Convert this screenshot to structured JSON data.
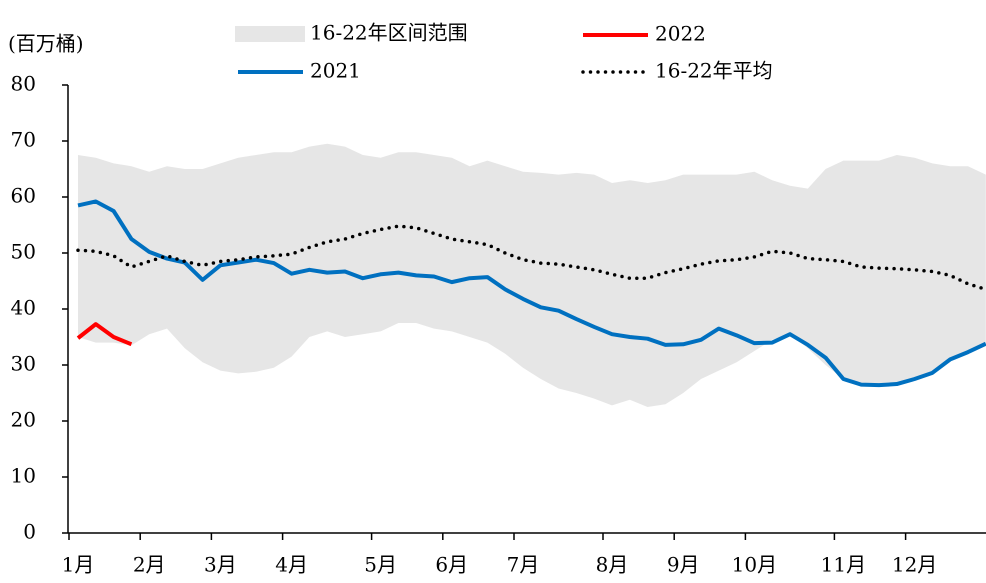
{
  "chart_data": {
    "type": "line",
    "y_label": "(百万桶)",
    "categories": [
      "1月",
      null,
      null,
      null,
      "2月",
      null,
      null,
      null,
      "3月",
      null,
      null,
      null,
      "4月",
      null,
      null,
      null,
      null,
      "5月",
      null,
      null,
      null,
      "6月",
      null,
      null,
      null,
      "7月",
      null,
      null,
      null,
      null,
      "8月",
      null,
      null,
      null,
      "9月",
      null,
      null,
      null,
      "10月",
      null,
      null,
      null,
      null,
      "11月",
      null,
      null,
      null,
      "12月",
      null,
      null,
      null,
      null
    ],
    "ylim": [
      0,
      80
    ],
    "yticks": [
      0,
      10,
      20,
      30,
      40,
      50,
      60,
      70,
      80
    ],
    "series": [
      {
        "name": "16-22年区间范围",
        "color": "#e6e6e6",
        "style": "range",
        "values": [
          67.5,
          67,
          66,
          65.5,
          64.5,
          65.5,
          65,
          65,
          66,
          67,
          67.5,
          68,
          68,
          69,
          69.5,
          69,
          67.5,
          67,
          68,
          68,
          67.5,
          67,
          65.5,
          66.5,
          65.5,
          64.5,
          64.3,
          64,
          64.3,
          64,
          62.5,
          63,
          62.5,
          63,
          64,
          64,
          64,
          64,
          64.5,
          63,
          62,
          61.5,
          65,
          66.5,
          66.5,
          66.5,
          67.5,
          67,
          66,
          65.5,
          65.5,
          64
        ],
        "lower": [
          35,
          34,
          34,
          33.5,
          35.5,
          36.5,
          33,
          30.5,
          29,
          28.5,
          28.8,
          29.5,
          31.5,
          35,
          36,
          35,
          35.5,
          36,
          37.5,
          37.5,
          36.5,
          36,
          35,
          34,
          32,
          29.5,
          27.5,
          25.8,
          25,
          24,
          22.8,
          23.8,
          22.5,
          23,
          25,
          27.5,
          29,
          30.5,
          32.5,
          34.5,
          35.5,
          33,
          30,
          27.5,
          26.5,
          26.3,
          26.6,
          27.5,
          28.5,
          31,
          32.3,
          34
        ]
      },
      {
        "name": "2022",
        "color": "#ff0000",
        "style": "solid",
        "values": [
          34.8,
          37.3,
          35,
          33.7,
          null,
          null,
          null,
          null,
          null,
          null,
          null,
          null,
          null,
          null,
          null,
          null,
          null,
          null,
          null,
          null,
          null,
          null,
          null,
          null,
          null,
          null,
          null,
          null,
          null,
          null,
          null,
          null,
          null,
          null,
          null,
          null,
          null,
          null,
          null,
          null,
          null,
          null,
          null,
          null,
          null,
          null,
          null,
          null,
          null,
          null,
          null,
          null
        ]
      },
      {
        "name": "2021",
        "color": "#0070c0",
        "style": "solid",
        "values": [
          58.5,
          59.2,
          57.5,
          52.5,
          50.2,
          49,
          48.3,
          45.2,
          47.8,
          48.3,
          48.8,
          48.2,
          46.3,
          47,
          46.5,
          46.7,
          45.5,
          46.2,
          46.5,
          46,
          45.8,
          44.8,
          45.5,
          45.7,
          43.5,
          41.8,
          40.3,
          39.7,
          38.2,
          36.8,
          35.5,
          35,
          34.7,
          33.6,
          33.7,
          34.5,
          36.5,
          35.3,
          33.9,
          34,
          35.5,
          33.6,
          31.3,
          27.5,
          26.5,
          26.4,
          26.6,
          27.5,
          28.6,
          31,
          32.3,
          33.8
        ]
      },
      {
        "name": "16-22年平均",
        "color": "#000000",
        "style": "dotted",
        "values": [
          50.5,
          50.3,
          49.5,
          47.5,
          48.5,
          49.5,
          48.5,
          47.8,
          48.5,
          48.8,
          49.3,
          49.5,
          49.8,
          51,
          52,
          52.5,
          53.5,
          54.2,
          54.8,
          54.5,
          53.5,
          52.5,
          52,
          51.5,
          50,
          48.8,
          48.2,
          48,
          47.5,
          47,
          46.2,
          45.5,
          45.5,
          46.5,
          47.2,
          48,
          48.6,
          48.8,
          49.3,
          50.3,
          50,
          49,
          48.8,
          48.5,
          47.5,
          47.3,
          47.2,
          47,
          46.7,
          46,
          44.5,
          43.5
        ]
      }
    ]
  }
}
